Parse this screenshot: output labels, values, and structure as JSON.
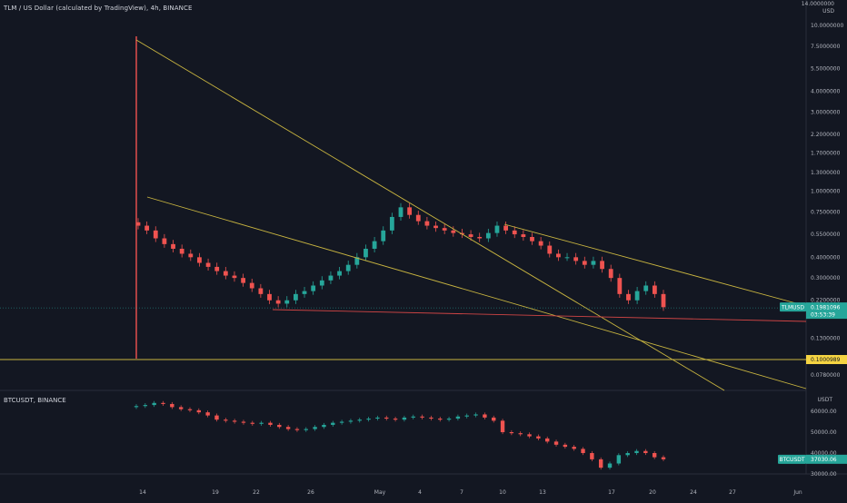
{
  "header": {
    "title": "TLM / US Dollar (calculated by TradingView), 4h, BINANCE",
    "subchart_title": "BTCUSDT, BINANCE",
    "unit_main_top": "14.0000000",
    "unit_main": "USD",
    "unit_sub": "USDT"
  },
  "colors": {
    "background": "#131722",
    "up": "#26a69a",
    "down": "#ef5350",
    "trendline": "#c9b540",
    "support": "#d04545",
    "grid": "#1e222d"
  },
  "chart_data": [
    {
      "type": "candlestick",
      "title": "TLM / US Dollar (calculated by TradingView), 4h, BINANCE",
      "scale": "log",
      "y_ticks": [
        "10.0000000",
        "7.5000000",
        "5.5000000",
        "4.0000000",
        "3.0000000",
        "2.2000000",
        "1.7000000",
        "1.3000000",
        "1.0000000",
        "0.7500000",
        "0.5500000",
        "0.4000000",
        "0.3000000",
        "0.2200000",
        "0.1300000",
        "0.0780000"
      ],
      "x_ticks": [
        "14",
        "19",
        "22",
        "26",
        "May",
        "4",
        "7",
        "10",
        "13",
        "17",
        "20",
        "24",
        "27",
        "Jun"
      ],
      "last_price_label": "TLMUSD",
      "last_price": "0.1981096",
      "countdown": "03:53:39",
      "horizontal_level": "0.1000989",
      "series_close_approx": [
        0.62,
        0.58,
        0.52,
        0.48,
        0.45,
        0.42,
        0.4,
        0.37,
        0.35,
        0.33,
        0.31,
        0.3,
        0.28,
        0.26,
        0.24,
        0.22,
        0.21,
        0.22,
        0.24,
        0.25,
        0.27,
        0.29,
        0.31,
        0.33,
        0.36,
        0.4,
        0.45,
        0.5,
        0.58,
        0.7,
        0.8,
        0.72,
        0.66,
        0.62,
        0.6,
        0.58,
        0.56,
        0.55,
        0.53,
        0.52,
        0.56,
        0.62,
        0.58,
        0.55,
        0.53,
        0.5,
        0.47,
        0.42,
        0.4,
        0.4,
        0.38,
        0.36,
        0.38,
        0.34,
        0.3,
        0.24,
        0.22,
        0.25,
        0.27,
        0.24,
        0.2
      ]
    },
    {
      "type": "candlestick",
      "title": "BTCUSDT, BINANCE",
      "y_ticks": [
        "60000.00",
        "50000.00",
        "40000.00",
        "30000.00"
      ],
      "last_price_label": "BTCUSDT",
      "last_price": "37030.06",
      "series_close_approx": [
        62500,
        63000,
        64000,
        63500,
        62000,
        61000,
        60500,
        59500,
        58000,
        56000,
        55500,
        55000,
        54500,
        54000,
        54500,
        53500,
        52500,
        51500,
        51000,
        51500,
        52500,
        53500,
        54500,
        55000,
        55500,
        56000,
        56500,
        57000,
        56500,
        56000,
        57000,
        57500,
        57000,
        56500,
        56000,
        56500,
        57500,
        58000,
        58500,
        57000,
        55500,
        50000,
        49500,
        49000,
        48000,
        47000,
        45500,
        44000,
        43000,
        42000,
        40000,
        37000,
        33000,
        35000,
        39000,
        40000,
        41000,
        40000,
        38000,
        37030
      ]
    }
  ]
}
